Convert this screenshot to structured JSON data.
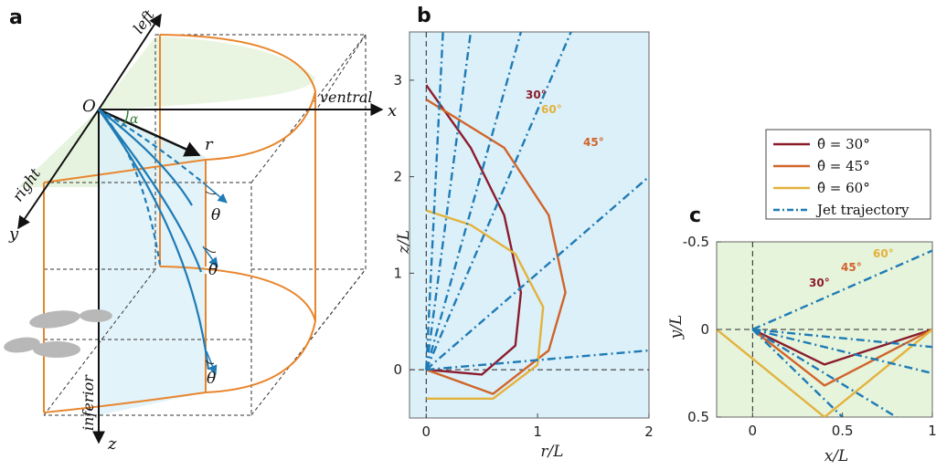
{
  "panels": {
    "a": "a",
    "b": "b",
    "c": "c"
  },
  "panel_a": {
    "origin": "O",
    "x_axis": "x",
    "y_axis": "y",
    "z_axis": "z",
    "r_label": "r",
    "alpha": "α",
    "theta": "θ",
    "left": "left",
    "right": "right",
    "ventral": "ventral",
    "inferior": "inferior"
  },
  "legend": {
    "entries": [
      {
        "label": "θ̂ = 30°",
        "color": "#8b1c2c"
      },
      {
        "label": "θ̂ = 45°",
        "color": "#d0642a"
      },
      {
        "label": "θ̂ = 60°",
        "color": "#e3b23c"
      },
      {
        "label": "Jet trajectory",
        "color": "#1f7bb5"
      }
    ]
  },
  "colors": {
    "bg_b": "#dcf0f9",
    "bg_c": "#e6f4dc",
    "jet": "#1f7bb5",
    "c30": "#8b1c2c",
    "c45": "#d0642a",
    "c60": "#e3b23c",
    "orange": "#e8862e"
  },
  "chart_data": [
    {
      "type": "line",
      "panel": "b",
      "xlabel": "r/L",
      "ylabel": "z/L",
      "xlim": [
        -0.15,
        2.0
      ],
      "ylim": [
        3.5,
        -0.5
      ],
      "x_ticks": [
        "0",
        "1",
        "2"
      ],
      "y_ticks": [
        "0",
        "1",
        "2",
        "3"
      ],
      "annotations": [
        "30°",
        "45°",
        "60°"
      ],
      "series": [
        {
          "name": "θ̂ = 30°",
          "x": [
            0,
            0.5,
            0.8,
            0.85,
            0.7,
            0.4,
            0
          ],
          "y": [
            0,
            -0.05,
            0.25,
            0.8,
            1.6,
            2.3,
            2.95
          ]
        },
        {
          "name": "θ̂ = 45°",
          "x": [
            0,
            0.6,
            1.1,
            1.25,
            1.1,
            0.7,
            0
          ],
          "y": [
            0,
            -0.25,
            0.2,
            0.8,
            1.6,
            2.3,
            2.8
          ]
        },
        {
          "name": "θ̂ = 60°",
          "x": [
            0,
            0.6,
            1.0,
            1.05,
            0.8,
            0.4,
            0
          ],
          "y": [
            -0.3,
            -0.3,
            0.05,
            0.65,
            1.2,
            1.5,
            1.65
          ]
        },
        {
          "name": "Jet trajectory",
          "x": [
            0,
            2.0
          ],
          "y": [
            0,
            0.2
          ]
        },
        {
          "name": "Jet trajectory",
          "x": [
            0,
            2.0
          ],
          "y": [
            0,
            2.0
          ]
        },
        {
          "name": "Jet trajectory",
          "x": [
            0,
            1.3
          ],
          "y": [
            0,
            3.5
          ]
        },
        {
          "name": "Jet trajectory",
          "x": [
            0,
            0.85
          ],
          "y": [
            0,
            3.5
          ]
        },
        {
          "name": "Jet trajectory",
          "x": [
            0,
            0.4
          ],
          "y": [
            0,
            3.5
          ]
        },
        {
          "name": "Jet trajectory",
          "x": [
            0,
            0.15
          ],
          "y": [
            0,
            3.5
          ]
        }
      ]
    },
    {
      "type": "line",
      "panel": "c",
      "xlabel": "x/L",
      "ylabel": "y/L",
      "xlim": [
        -0.2,
        1.0
      ],
      "ylim": [
        -0.5,
        0.5
      ],
      "x_ticks": [
        "0",
        "0.5",
        "1"
      ],
      "y_ticks": [
        "-0.5",
        "0",
        "0.5"
      ],
      "annotations": [
        "30°",
        "45°",
        "60°"
      ],
      "series": [
        {
          "name": "θ̂ = 30°",
          "x": [
            0,
            0.4,
            1.0
          ],
          "y": [
            0,
            0.2,
            0
          ]
        },
        {
          "name": "θ̂ = 45°",
          "x": [
            0,
            0.4,
            1.0
          ],
          "y": [
            0,
            0.32,
            0
          ]
        },
        {
          "name": "θ̂ = 60°",
          "x": [
            -0.2,
            0.4,
            1.0
          ],
          "y": [
            0,
            0.5,
            0
          ]
        },
        {
          "name": "Jet trajectory",
          "x": [
            0,
            1.0
          ],
          "y": [
            0,
            -0.45
          ]
        },
        {
          "name": "Jet trajectory",
          "x": [
            0,
            1.0
          ],
          "y": [
            0,
            0.1
          ]
        },
        {
          "name": "Jet trajectory",
          "x": [
            0,
            1.0
          ],
          "y": [
            0,
            0.25
          ]
        },
        {
          "name": "Jet trajectory",
          "x": [
            0,
            0.8
          ],
          "y": [
            0,
            0.5
          ]
        },
        {
          "name": "Jet trajectory",
          "x": [
            0,
            0.5
          ],
          "y": [
            0,
            0.5
          ]
        }
      ]
    }
  ]
}
